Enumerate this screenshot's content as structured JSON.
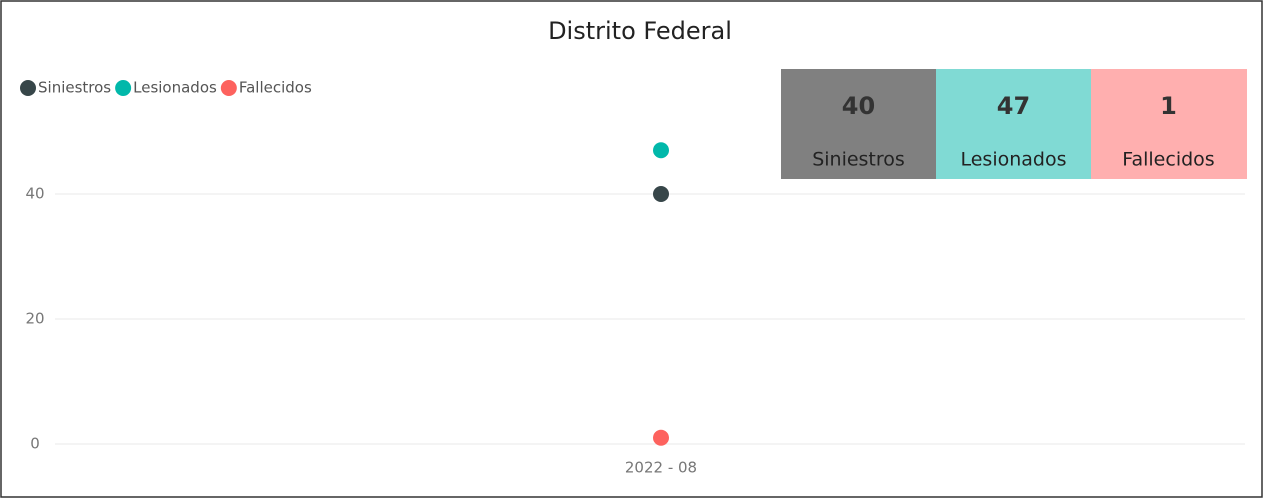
{
  "chart_data": {
    "type": "scatter",
    "title": "Distrito Federal",
    "categories": [
      "2022 - 08"
    ],
    "series": [
      {
        "name": "Siniestros",
        "color": "#374649",
        "values": [
          40
        ]
      },
      {
        "name": "Lesionados",
        "color": "#01B8AA",
        "values": [
          47
        ]
      },
      {
        "name": "Fallecidos",
        "color": "#FD625E",
        "values": [
          1
        ]
      }
    ],
    "ylim": [
      0,
      50
    ],
    "yticks": [
      0,
      20,
      40
    ],
    "grid": true,
    "legend": "top-left"
  }
}
